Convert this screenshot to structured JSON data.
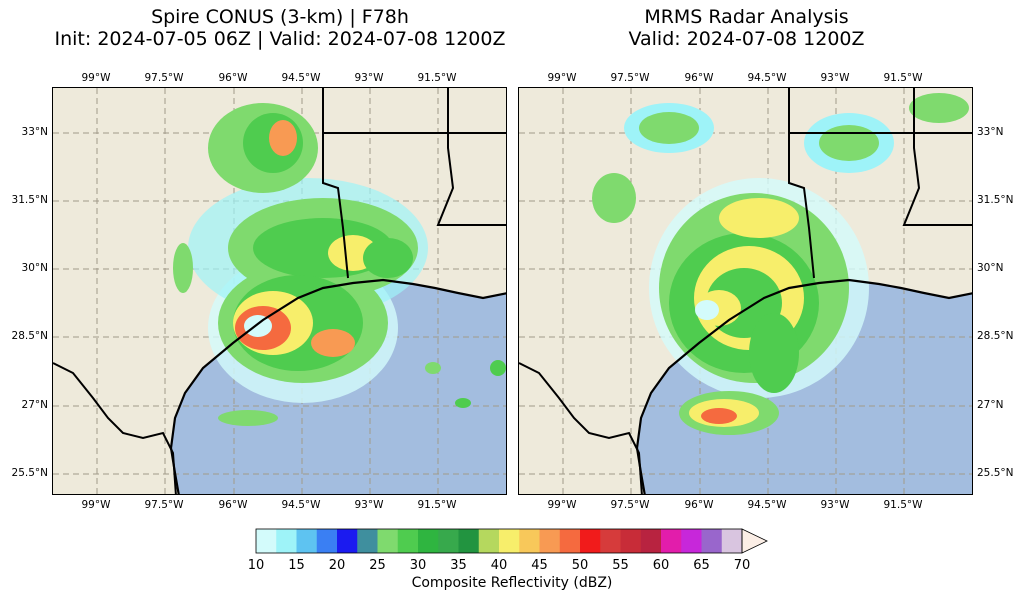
{
  "panels": [
    {
      "title_line1": "Spire CONUS (3-km) | F78h",
      "title_line2": "Init: 2024-07-05 06Z | Valid: 2024-07-08 1200Z"
    },
    {
      "title_line1": "MRMS Radar Analysis",
      "title_line2": "Valid: 2024-07-08 1200Z"
    }
  ],
  "longitude_labels": [
    "99°W",
    "97.5°W",
    "96°W",
    "94.5°W",
    "93°W",
    "91.5°W"
  ],
  "latitude_labels": [
    "33°N",
    "31.5°N",
    "30°N",
    "28.5°N",
    "27°N",
    "25.5°N"
  ],
  "colorbar": {
    "label": "Composite Reflectivity (dBZ)",
    "ticks": [
      "10",
      "15",
      "20",
      "25",
      "30",
      "35",
      "40",
      "45",
      "50",
      "55",
      "60",
      "65",
      "70"
    ],
    "colors": [
      "#d3fbfb",
      "#9ef3f8",
      "#5ec3f1",
      "#3a7ff3",
      "#1b1bf0",
      "#3f8f9e",
      "#7fda6e",
      "#4fcc4f",
      "#2fb540",
      "#37a94c",
      "#229440",
      "#b5d85e",
      "#f7ee6b",
      "#f8c85a",
      "#f89a53",
      "#f56a3f",
      "#f11b1b",
      "#d63b3b",
      "#c82c38",
      "#b82340",
      "#e21dab",
      "#c727da",
      "#9966cc",
      "#d9c5e0"
    ],
    "extend_color": "#fbeee6"
  },
  "map_colors": {
    "land": "#eeeadb",
    "ocean": "#a3bddf",
    "borders": "#000000",
    "grid": "#999999"
  }
}
